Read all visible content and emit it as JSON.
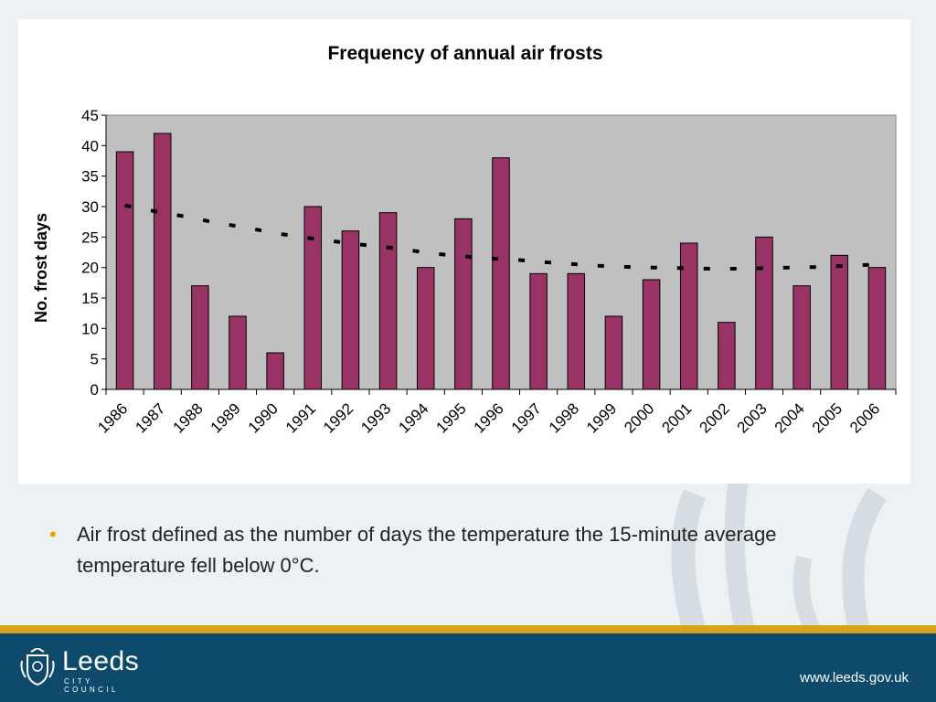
{
  "chart_data": {
    "type": "bar",
    "title": "Frequency of annual air frosts",
    "xlabel": "",
    "ylabel": "No. frost days",
    "ylim": [
      0,
      45
    ],
    "yticks": [
      0,
      5,
      10,
      15,
      20,
      25,
      30,
      35,
      40,
      45
    ],
    "grid": false,
    "categories": [
      "1986",
      "1987",
      "1988",
      "1989",
      "1990",
      "1991",
      "1992",
      "1993",
      "1994",
      "1995",
      "1996",
      "1997",
      "1998",
      "1999",
      "2000",
      "2001",
      "2002",
      "2003",
      "2004",
      "2005",
      "2006"
    ],
    "values": [
      39,
      42,
      17,
      12,
      6,
      30,
      26,
      29,
      20,
      28,
      38,
      19,
      19,
      12,
      18,
      24,
      11,
      25,
      17,
      22,
      20
    ],
    "trend_values": [
      30.2,
      29.3,
      28.5,
      27.6,
      26.8,
      26.0,
      25.2,
      24.6,
      24.0,
      23.5,
      23.0,
      22.3,
      21.9,
      21.5,
      21.3,
      20.9,
      20.6,
      20.3,
      20.1,
      20.0,
      19.9,
      19.8,
      19.8,
      19.9,
      20.0,
      20.1,
      20.3,
      20.5
    ],
    "colors": {
      "bar_fill": "#993366",
      "bar_stroke": "#000000",
      "plot_bg": "#c0c0c0",
      "trend": "#000000"
    }
  },
  "bullet": {
    "text": "Air frost defined as the number of days the temperature the 15-minute average temperature fell below 0°C."
  },
  "footer": {
    "logo_main": "Leeds",
    "logo_sub": "CITY COUNCIL",
    "website": "www.leeds.gov.uk",
    "logo_icon": "coat-of-arms-icon"
  }
}
